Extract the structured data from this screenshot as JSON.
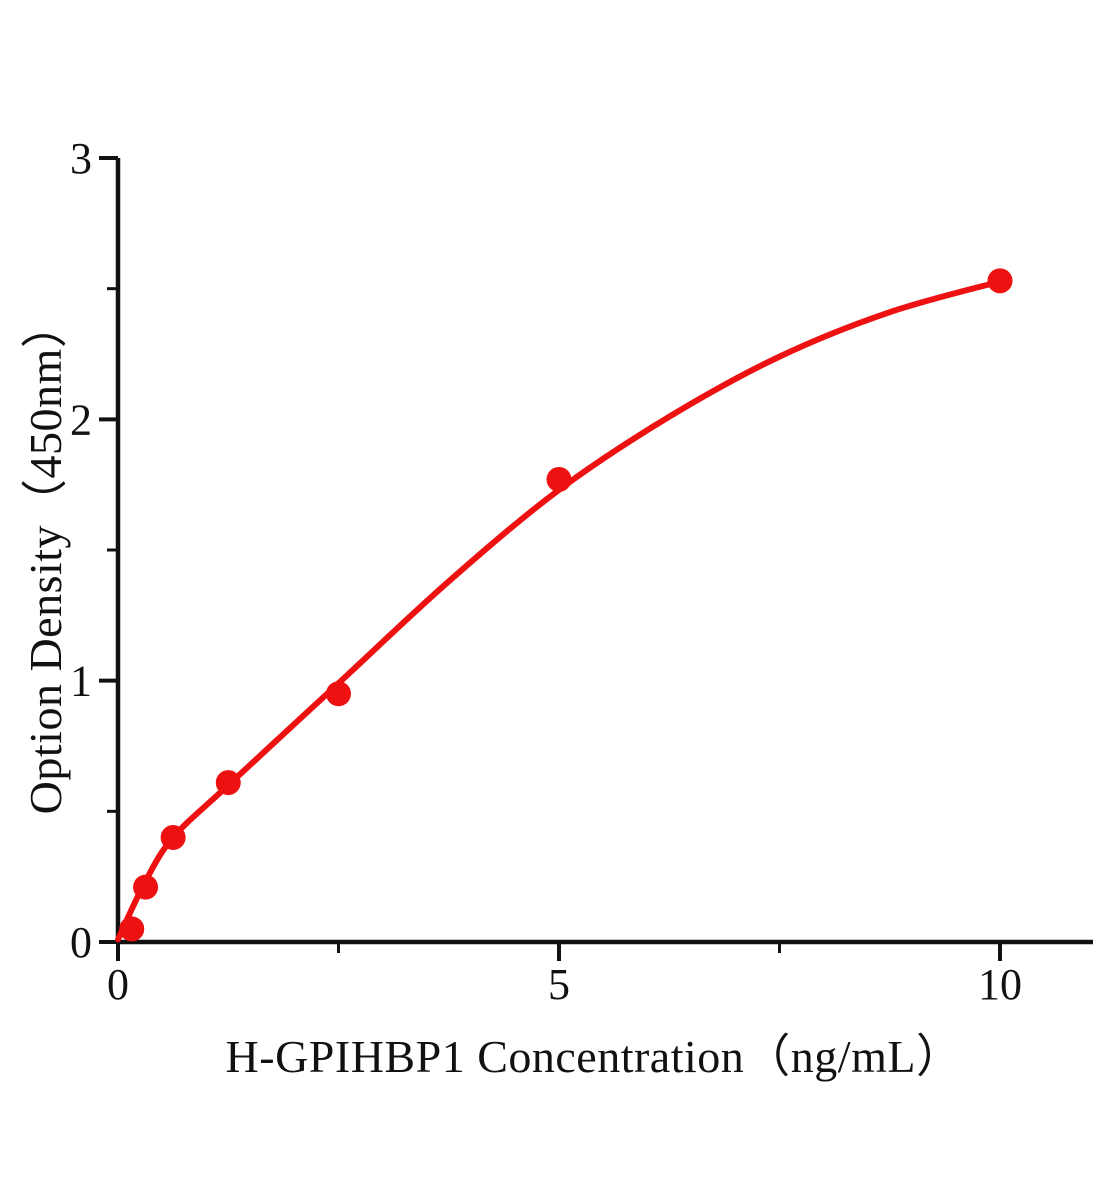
{
  "figure": {
    "background": "#ffffff",
    "axis_color": "#111111",
    "accent_red": "#ee1111"
  },
  "chart_data": {
    "type": "scatter",
    "title": "",
    "xlabel": "H-GPIHBP1 Concentration（ng/mL）",
    "ylabel": "Option Density（450nm）",
    "xlim": [
      0,
      11.05
    ],
    "ylim": [
      0,
      3
    ],
    "grid": false,
    "legend_position": "none",
    "x_major_ticks": [
      0,
      5,
      10
    ],
    "x_major_tick_labels": [
      "0",
      "5",
      "10"
    ],
    "x_minor_ticks": [
      2.5,
      7.5
    ],
    "y_major_ticks": [
      0,
      1,
      2,
      3
    ],
    "y_major_tick_labels": [
      "0",
      "1",
      "2",
      "3"
    ],
    "y_minor_ticks": [
      0.5,
      1.5,
      2.5
    ],
    "series": [
      {
        "name": "standard-points",
        "type": "scatter",
        "color": "#ee1111",
        "marker": "circle",
        "x": [
          0.156,
          0.3125,
          0.625,
          1.25,
          2.5,
          5,
          10
        ],
        "y": [
          0.05,
          0.21,
          0.4,
          0.61,
          0.95,
          1.77,
          2.53
        ]
      },
      {
        "name": "fit-curve",
        "type": "line",
        "color": "#ee1111",
        "points": [
          [
            0,
            0.01
          ],
          [
            0.3,
            0.225
          ],
          [
            0.625,
            0.4
          ],
          [
            1.25,
            0.6
          ],
          [
            2.5,
            0.99
          ],
          [
            3.75,
            1.38
          ],
          [
            5,
            1.73
          ],
          [
            6.25,
            2.01
          ],
          [
            7.5,
            2.24
          ],
          [
            8.75,
            2.41
          ],
          [
            10.03,
            2.53
          ]
        ]
      }
    ]
  }
}
